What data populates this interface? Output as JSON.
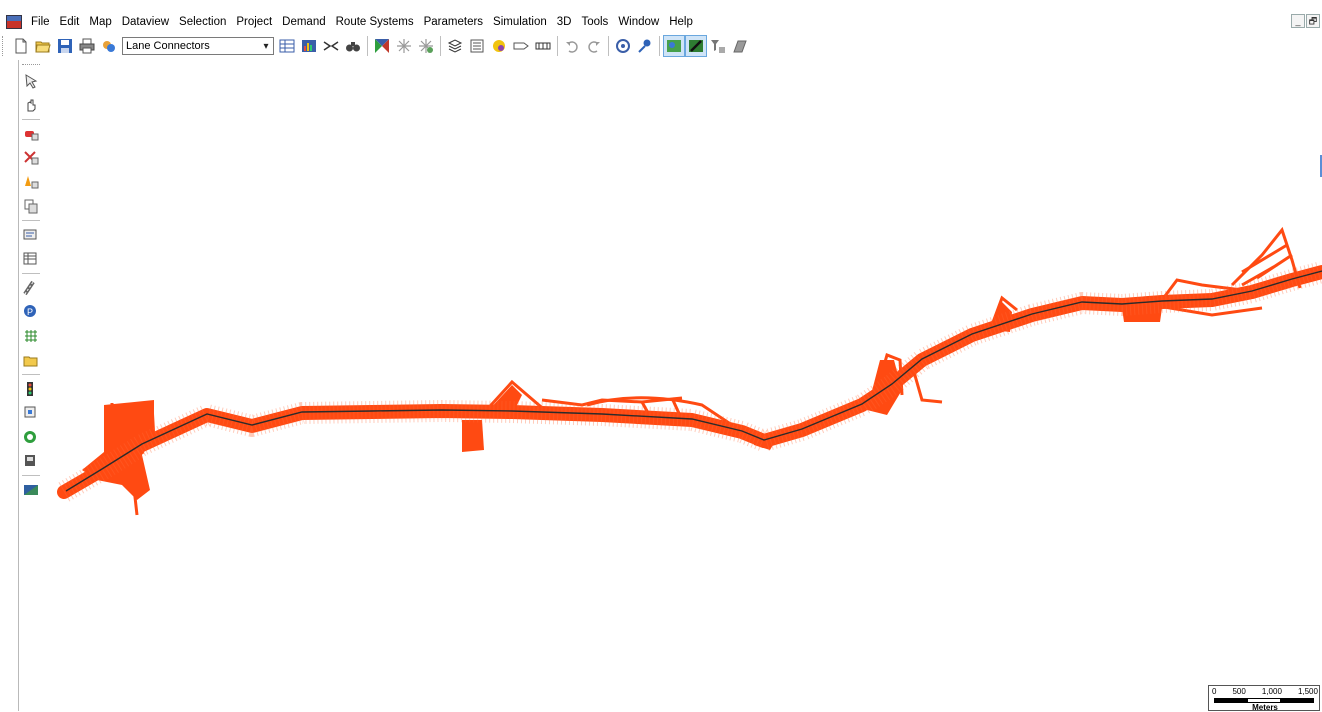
{
  "menubar": {
    "items": [
      "File",
      "Edit",
      "Map",
      "Dataview",
      "Selection",
      "Project",
      "Demand",
      "Route Systems",
      "Parameters",
      "Simulation",
      "3D",
      "Tools",
      "Window",
      "Help"
    ],
    "window_controls": [
      "_",
      "🗗"
    ]
  },
  "toolbar": {
    "layer_select": {
      "value": "Lane Connectors"
    },
    "icons_left": [
      "new-file-icon",
      "open-folder-icon",
      "save-icon",
      "print-icon",
      "layer-settings-icon"
    ],
    "icons_right": [
      "dataview-icon",
      "chart-icon",
      "merge-icon",
      "find-icon",
      "select-by-shape-icon",
      "select-tool-icon",
      "deselect-icon",
      "layer-stack-icon",
      "legend-icon",
      "label-icon",
      "tag-icon",
      "scale-km-icon",
      "undo-icon",
      "redo-icon",
      "target-icon",
      "pin-icon",
      "map-view-icon",
      "road-edit-icon",
      "filter-icon",
      "3d-shape-icon"
    ]
  },
  "vtoolbar": {
    "groups": [
      [
        "pointer-tool-icon",
        "hand-pan-icon"
      ],
      [
        "vehicle-tool-icon",
        "route-tool-icon",
        "cone-tool-icon",
        "copy-tool-icon"
      ],
      [
        "measure-tool-icon",
        "table-tool-icon"
      ],
      [
        "road-tool-icon",
        "parking-tool-icon",
        "network-tool-icon",
        "folder-tool-icon"
      ],
      [
        "signal-tool-icon",
        "detector-tool-icon",
        "gauge-tool-icon",
        "sensor-tool-icon"
      ],
      [
        "slope-tool-icon"
      ]
    ]
  },
  "map": {
    "network_color": "#ff4a12",
    "centerline_color": "#2b2b2b"
  },
  "scale_bar": {
    "ticks": [
      "0",
      "500",
      "1,000",
      "1,500"
    ],
    "unit": "Meters"
  }
}
